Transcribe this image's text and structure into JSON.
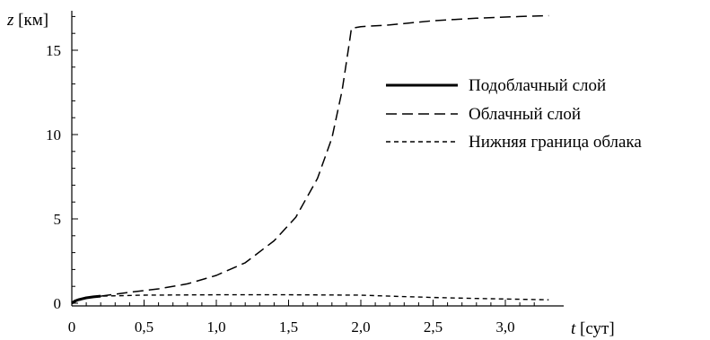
{
  "chart_data": {
    "type": "line",
    "title": "",
    "xlabel": {
      "var": "t",
      "unit": " [сут]"
    },
    "ylabel": {
      "var": "z",
      "unit": " [км]"
    },
    "xlim": [
      0,
      3.3
    ],
    "ylim": [
      -0.2,
      17.2
    ],
    "x_ticks": [
      {
        "value": 0,
        "label": "0"
      },
      {
        "value": 0.5,
        "label": "0,5"
      },
      {
        "value": 1.0,
        "label": "1,0"
      },
      {
        "value": 1.5,
        "label": "1,5"
      },
      {
        "value": 2.0,
        "label": "2,0"
      },
      {
        "value": 2.5,
        "label": "2,5"
      },
      {
        "value": 3.0,
        "label": "3,0"
      }
    ],
    "y_ticks": [
      {
        "value": 0,
        "label": "0"
      },
      {
        "value": 5,
        "label": "5"
      },
      {
        "value": 10,
        "label": "10"
      },
      {
        "value": 15,
        "label": "15"
      }
    ],
    "grid": false,
    "legend_position": "right",
    "series": [
      {
        "name": "Подоблачный слой",
        "style": "solid-thick",
        "color": "#000000",
        "points": [
          [
            0,
            0
          ],
          [
            0.02,
            0.12
          ],
          [
            0.05,
            0.22
          ],
          [
            0.1,
            0.32
          ],
          [
            0.15,
            0.38
          ],
          [
            0.2,
            0.42
          ]
        ]
      },
      {
        "name": "Облачный слой",
        "style": "long-dash",
        "color": "#000000",
        "points": [
          [
            0.2,
            0.42
          ],
          [
            0.4,
            0.65
          ],
          [
            0.6,
            0.85
          ],
          [
            0.8,
            1.15
          ],
          [
            1.0,
            1.65
          ],
          [
            1.2,
            2.4
          ],
          [
            1.4,
            3.7
          ],
          [
            1.55,
            5.1
          ],
          [
            1.7,
            7.4
          ],
          [
            1.8,
            9.8
          ],
          [
            1.87,
            12.6
          ],
          [
            1.92,
            15.4
          ],
          [
            1.935,
            16.3
          ],
          [
            2.0,
            16.4
          ],
          [
            2.2,
            16.5
          ],
          [
            2.5,
            16.75
          ],
          [
            2.8,
            16.9
          ],
          [
            3.1,
            17.0
          ],
          [
            3.3,
            17.05
          ]
        ]
      },
      {
        "name": "Нижняя граница облака",
        "style": "short-dash",
        "color": "#000000",
        "points": [
          [
            0,
            0.0
          ],
          [
            0.1,
            0.32
          ],
          [
            0.2,
            0.42
          ],
          [
            0.5,
            0.48
          ],
          [
            1.0,
            0.5
          ],
          [
            1.5,
            0.5
          ],
          [
            2.0,
            0.48
          ],
          [
            2.2,
            0.42
          ],
          [
            2.5,
            0.34
          ],
          [
            2.8,
            0.28
          ],
          [
            3.3,
            0.2
          ]
        ]
      }
    ]
  }
}
